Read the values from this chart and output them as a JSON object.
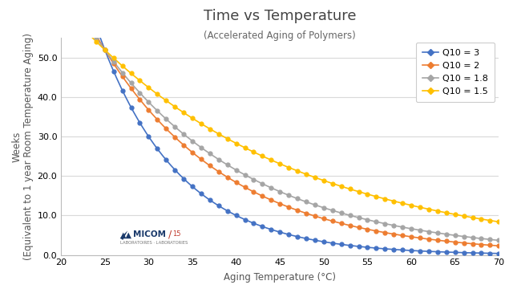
{
  "title": "Time vs Temperature",
  "subtitle": "(Accelerated Aging of Polymers)",
  "xlabel": "Aging Temperature (°C)",
  "ylabel": "Weeks\n(Equivalent to 1 year Room Temperature Aging)",
  "x_min": 20,
  "x_max": 70,
  "y_min": 0,
  "y_max": 55,
  "x_ticks": [
    20,
    25,
    30,
    35,
    40,
    45,
    50,
    55,
    60,
    65,
    70
  ],
  "y_ticks": [
    0.0,
    10.0,
    20.0,
    30.0,
    40.0,
    50.0
  ],
  "room_temp": 25,
  "real_time_weeks": 52,
  "data_x_start": 22,
  "series": [
    {
      "q10": 3,
      "color": "#4472C4",
      "label": "Q10 = 3"
    },
    {
      "q10": 2,
      "color": "#ED7D31",
      "label": "Q10 = 2"
    },
    {
      "q10": 1.8,
      "color": "#A5A5A5",
      "label": "Q10 = 1.8"
    },
    {
      "q10": 1.5,
      "color": "#FFC000",
      "label": "Q10 = 1.5"
    }
  ],
  "bg_color": "#FFFFFF",
  "plot_bg_color": "#FFFFFF",
  "grid_color": "#D9D9D9",
  "title_fontsize": 13,
  "subtitle_fontsize": 8.5,
  "label_fontsize": 8.5,
  "tick_fontsize": 8,
  "legend_fontsize": 8,
  "marker_size": 3.5,
  "linewidth": 1.2
}
